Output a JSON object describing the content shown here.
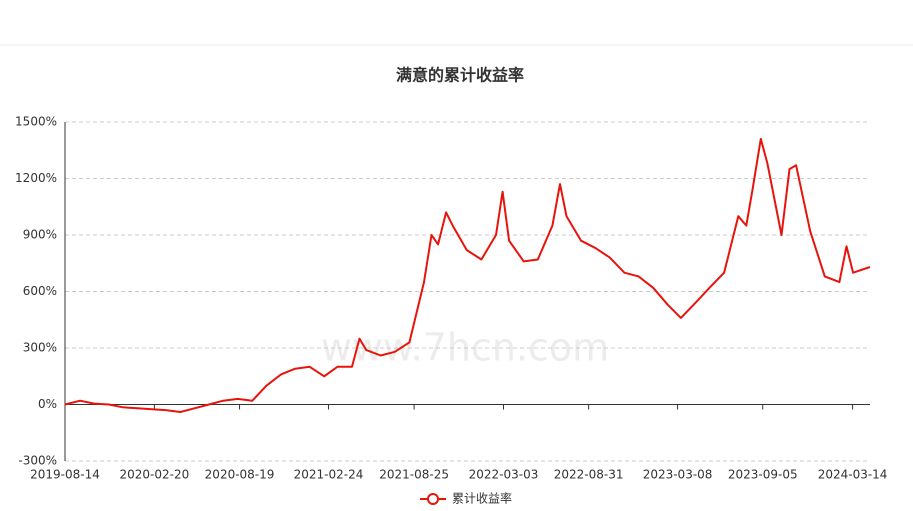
{
  "chart_data": {
    "type": "line",
    "title": "满意的累计收益率",
    "watermark": "www.7hcn.com",
    "x": [
      "2019-08-14",
      "2019-09-15",
      "2019-10-15",
      "2019-11-15",
      "2019-12-15",
      "2020-01-15",
      "2020-02-15",
      "2020-03-15",
      "2020-04-15",
      "2020-05-15",
      "2020-06-15",
      "2020-07-15",
      "2020-08-15",
      "2020-09-15",
      "2020-10-15",
      "2020-11-15",
      "2020-12-15",
      "2021-01-15",
      "2021-02-15",
      "2021-03-15",
      "2021-04-15",
      "2021-05-01",
      "2021-05-15",
      "2021-06-15",
      "2021-07-15",
      "2021-08-15",
      "2021-09-15",
      "2021-10-01",
      "2021-10-15",
      "2021-11-01",
      "2021-11-15",
      "2021-12-15",
      "2022-01-15",
      "2022-02-15",
      "2022-03-01",
      "2022-03-15",
      "2022-04-15",
      "2022-05-15",
      "2022-06-15",
      "2022-07-01",
      "2022-07-15",
      "2022-08-15",
      "2022-09-15",
      "2022-10-15",
      "2022-11-15",
      "2022-12-15",
      "2023-01-15",
      "2023-02-15",
      "2023-03-15",
      "2023-04-15",
      "2023-05-15",
      "2023-06-15",
      "2023-07-15",
      "2023-08-01",
      "2023-08-15",
      "2023-09-01",
      "2023-09-15",
      "2023-10-15",
      "2023-11-01",
      "2023-11-15",
      "2023-12-15",
      "2024-01-15",
      "2024-02-15",
      "2024-03-01",
      "2024-03-15",
      "2024-04-20"
    ],
    "series": [
      {
        "name": "累计收益率",
        "color": "#e8140c",
        "values": [
          0,
          20,
          5,
          0,
          -15,
          -20,
          -25,
          -30,
          -40,
          -20,
          0,
          20,
          30,
          20,
          100,
          160,
          190,
          200,
          150,
          200,
          200,
          350,
          290,
          260,
          280,
          330,
          650,
          900,
          850,
          1020,
          950,
          820,
          770,
          900,
          1130,
          870,
          760,
          770,
          950,
          1170,
          1000,
          870,
          830,
          780,
          700,
          680,
          620,
          530,
          460,
          540,
          620,
          700,
          1000,
          950,
          1150,
          1410,
          1280,
          900,
          1250,
          1270,
          920,
          680,
          650,
          840,
          700,
          730
        ]
      }
    ],
    "xlim": [
      "2019-08-14",
      "2024-04-20"
    ],
    "xticks": [
      "2019-08-14",
      "2020-02-20",
      "2020-08-19",
      "2021-02-24",
      "2021-08-25",
      "2022-03-03",
      "2022-08-31",
      "2023-03-08",
      "2023-09-05",
      "2024-03-14"
    ],
    "ylim": [
      -300,
      1500
    ],
    "yticks": [
      {
        "value": -300,
        "label": "-300%"
      },
      {
        "value": 0,
        "label": "0%"
      },
      {
        "value": 300,
        "label": "300%"
      },
      {
        "value": 600,
        "label": "600%"
      },
      {
        "value": 900,
        "label": "900%"
      },
      {
        "value": 1200,
        "label": "1200%"
      },
      {
        "value": 1500,
        "label": "1500%"
      }
    ],
    "grid": true,
    "legend": "bottom"
  }
}
